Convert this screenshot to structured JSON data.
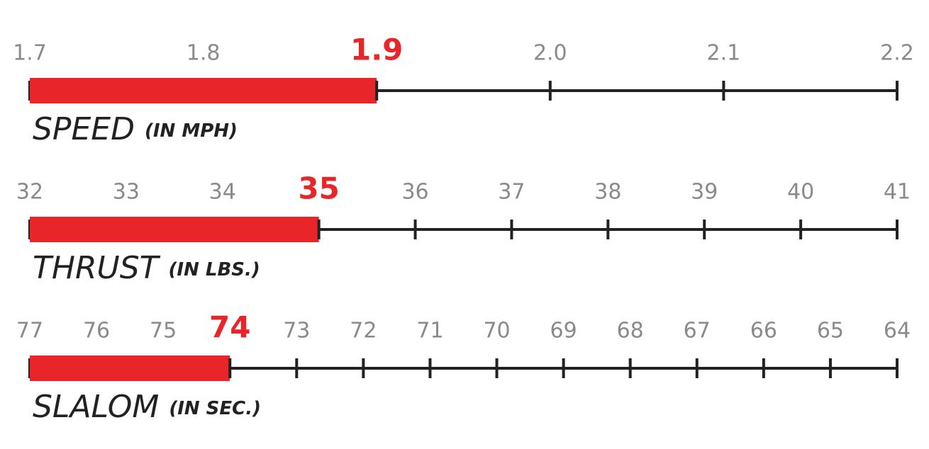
{
  "chart_data": [
    {
      "type": "gauge",
      "title": "SPEED",
      "subtitle": "(IN MPH)",
      "value": 1.9,
      "color": "#e8262a",
      "xlim": [
        1.7,
        2.2
      ],
      "xticks": [
        1.7,
        1.8,
        {
          "value": 2,
          "label": "2.0"
        },
        2.1,
        2.2
      ]
    },
    {
      "type": "gauge",
      "title": "THRUST",
      "subtitle": "(IN LBS.)",
      "value": 35,
      "color": "#e8262a",
      "xlim": [
        32,
        41
      ],
      "xticks": [
        32,
        33,
        34,
        36,
        37,
        38,
        39,
        40,
        41
      ]
    },
    {
      "type": "gauge",
      "title": "SLALOM",
      "subtitle": "(IN SEC.)",
      "value": 74,
      "color": "#e8262a",
      "xlim": [
        77,
        64
      ],
      "xticks": [
        77,
        76,
        75,
        73,
        72,
        71,
        70,
        69,
        68,
        67,
        66,
        65,
        64
      ]
    }
  ]
}
